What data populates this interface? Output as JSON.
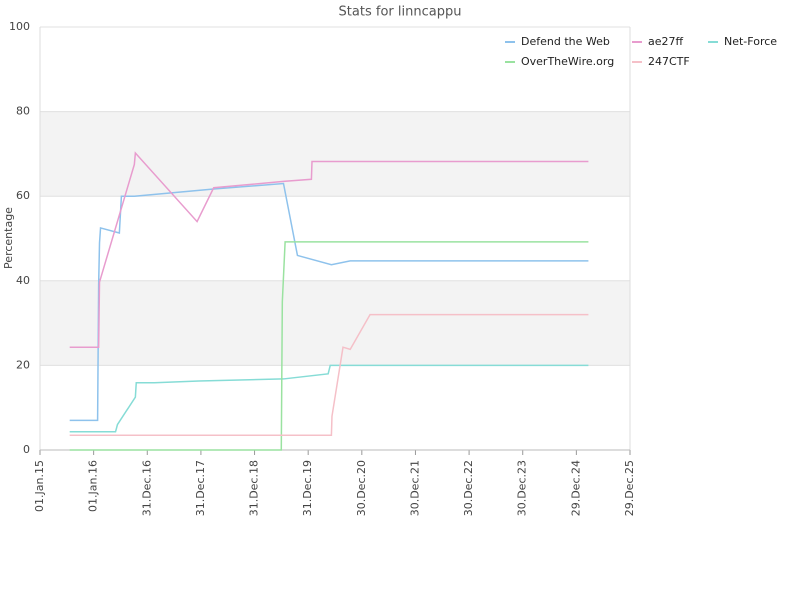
{
  "chart_data": {
    "type": "line",
    "title": "Stats for linncappu",
    "y_label": "Percentage",
    "ylim": [
      0,
      100
    ],
    "yticks": [
      0,
      20,
      40,
      60,
      80,
      100
    ],
    "grid": true,
    "legend": "top-right",
    "xlim": [
      "2015-01-01",
      "2025-12-29"
    ],
    "xticks": [
      {
        "value": "2015-01-01",
        "label": "01.Jan.15"
      },
      {
        "value": "2016-01-01",
        "label": "01.Jan.16"
      },
      {
        "value": "2016-12-31",
        "label": "31.Dec.16"
      },
      {
        "value": "2017-12-31",
        "label": "31.Dec.17"
      },
      {
        "value": "2018-12-31",
        "label": "31.Dec.18"
      },
      {
        "value": "2019-12-31",
        "label": "31.Dec.19"
      },
      {
        "value": "2020-12-30",
        "label": "30.Dec.20"
      },
      {
        "value": "2021-12-30",
        "label": "30.Dec.21"
      },
      {
        "value": "2022-12-30",
        "label": "30.Dec.22"
      },
      {
        "value": "2023-12-30",
        "label": "30.Dec.23"
      },
      {
        "value": "2024-12-29",
        "label": "29.Dec.24"
      },
      {
        "value": "2025-12-29",
        "label": "29.Dec.25"
      }
    ],
    "series": [
      {
        "name": "Defend the Web",
        "color": "#8ec2ec",
        "x": [
          "2015-07-22",
          "2016-01-28",
          "2016-02-04",
          "2016-02-10",
          "2016-02-17",
          "2016-06-24",
          "2016-07-08",
          "2016-10-04",
          "2018-03-28",
          "2019-07-16",
          "2019-10-19",
          "2020-06-06",
          "2020-10-12",
          "2025-03-21"
        ],
        "values": [
          7,
          7,
          39,
          49,
          52.5,
          51.3,
          60,
          60,
          61.7,
          63,
          46,
          43.8,
          44.7,
          44.7
        ]
      },
      {
        "name": "ae27ff",
        "color": "#e89cce",
        "x": [
          "2015-07-22",
          "2016-02-04",
          "2016-02-10",
          "2016-10-04",
          "2016-10-11",
          "2017-12-05",
          "2018-03-28",
          "2019-07-16",
          "2020-01-22",
          "2020-01-26",
          "2025-03-21"
        ],
        "values": [
          24.3,
          24.3,
          39.7,
          67.5,
          70.2,
          54,
          62,
          63.5,
          64,
          68.2,
          68.2
        ]
      },
      {
        "name": "Net-Force",
        "color": "#86dcd6",
        "x": [
          "2015-07-22",
          "2016-05-29",
          "2016-06-11",
          "2016-10-11",
          "2016-10-17",
          "2017-02-17",
          "2017-12-17",
          "2019-07-16",
          "2020-05-15",
          "2020-05-29",
          "2025-03-21"
        ],
        "values": [
          4.3,
          4.3,
          6,
          12.5,
          15.9,
          15.9,
          16.3,
          16.8,
          18,
          20,
          20
        ]
      },
      {
        "name": "OverTheWire.org",
        "color": "#9ae2a0",
        "x": [
          "2015-07-22",
          "2019-07-01",
          "2019-07-08",
          "2019-07-27",
          "2025-03-21"
        ],
        "values": [
          0,
          0,
          35,
          49.2,
          49.2
        ]
      },
      {
        "name": "247CTF",
        "color": "#f5c0c8",
        "x": [
          "2015-07-22",
          "2020-06-06",
          "2020-06-10",
          "2020-08-24",
          "2020-10-12",
          "2021-02-24",
          "2025-03-21"
        ],
        "values": [
          3.5,
          3.5,
          8,
          24.3,
          23.8,
          32,
          32
        ]
      }
    ]
  }
}
